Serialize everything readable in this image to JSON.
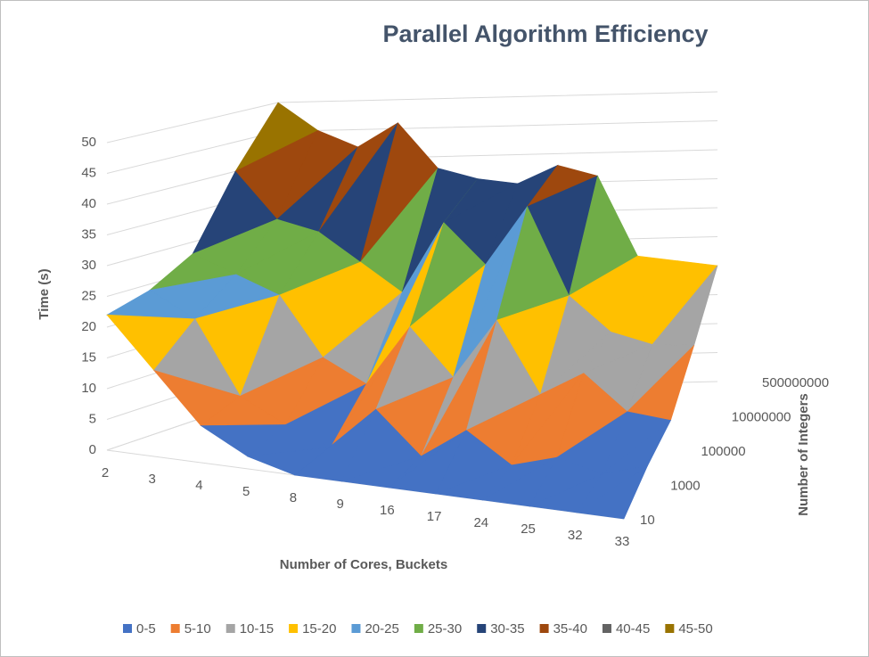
{
  "chart_data": {
    "type": "surface3d",
    "title": "Parallel Algorithm Efficiency",
    "y_label": "Time (s)",
    "x_label": "Number of Cores, Buckets",
    "z_label": "Number of Integers",
    "categories": [
      "2",
      "3",
      "4",
      "5",
      "8",
      "9",
      "16",
      "17",
      "24",
      "25",
      "32",
      "33"
    ],
    "series": [
      {
        "name": "10",
        "values": [
          22,
          14,
          6,
          2,
          0,
          0,
          0,
          0,
          0,
          0,
          0,
          0
        ]
      },
      {
        "name": "1000",
        "values": [
          24,
          20,
          8,
          4,
          1,
          8,
          1,
          6,
          1,
          3,
          1,
          3
        ]
      },
      {
        "name": "100000",
        "values": [
          28,
          25,
          22,
          12,
          8,
          18,
          10,
          20,
          8,
          12,
          6,
          5
        ]
      },
      {
        "name": "10000000",
        "values": [
          40,
          32,
          30,
          25,
          20,
          32,
          25,
          35,
          20,
          14,
          12,
          12
        ]
      },
      {
        "name": "500000000",
        "values": [
          50,
          45,
          42,
          46,
          38,
          36,
          35,
          38,
          36,
          22,
          21,
          20
        ]
      }
    ],
    "ylim": [
      0,
      50
    ],
    "yticks": [
      0,
      5,
      10,
      15,
      20,
      25,
      30,
      35,
      40,
      45,
      50
    ],
    "bands": [
      {
        "label": "0-5",
        "color": "#4472c4"
      },
      {
        "label": "5-10",
        "color": "#ed7d31"
      },
      {
        "label": "10-15",
        "color": "#a5a5a5"
      },
      {
        "label": "15-20",
        "color": "#ffc000"
      },
      {
        "label": "20-25",
        "color": "#5b9bd5"
      },
      {
        "label": "25-30",
        "color": "#70ad47"
      },
      {
        "label": "30-35",
        "color": "#264478"
      },
      {
        "label": "35-40",
        "color": "#9e480e"
      },
      {
        "label": "40-45",
        "color": "#636363"
      },
      {
        "label": "45-50",
        "color": "#997300"
      }
    ]
  }
}
